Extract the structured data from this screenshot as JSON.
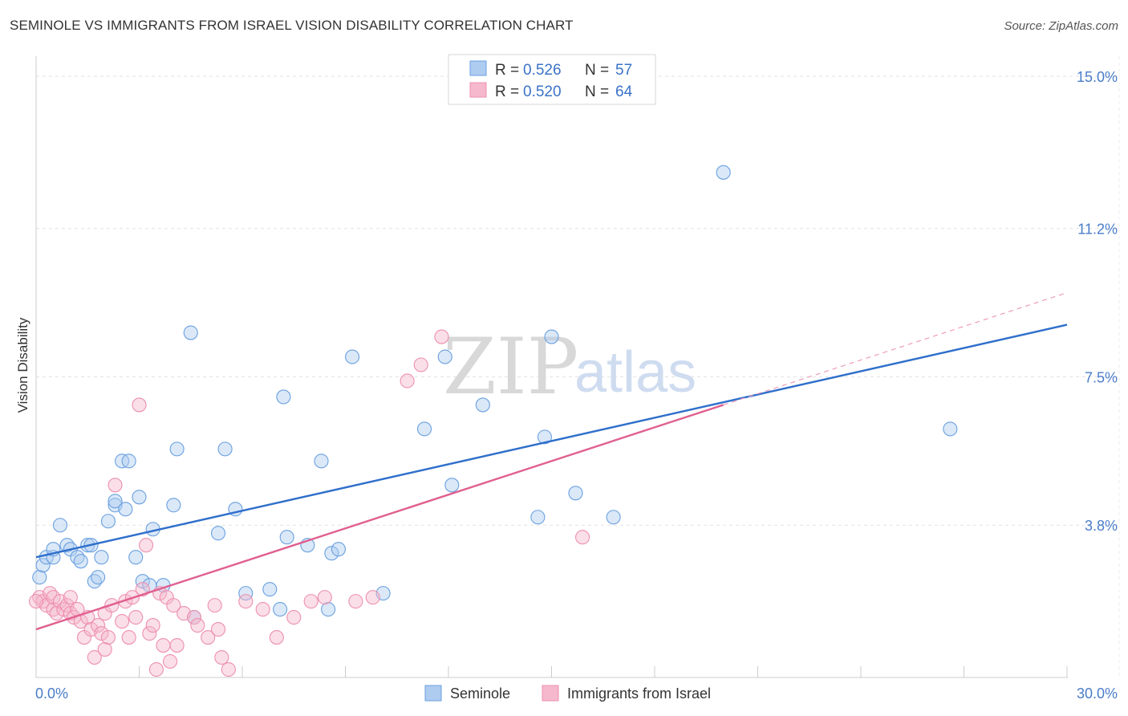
{
  "header": {
    "title": "SEMINOLE VS IMMIGRANTS FROM ISRAEL VISION DISABILITY CORRELATION CHART",
    "source": "Source: ZipAtlas.com"
  },
  "watermark": {
    "zip": "ZIP",
    "atlas": "atlas"
  },
  "legend": {
    "r_label": "R =",
    "n_label": "N =",
    "rows": [
      {
        "r": "0.526",
        "n": "57",
        "color": "#aecbf0"
      },
      {
        "r": "0.520",
        "n": "64",
        "color": "#f5b8cc"
      }
    ]
  },
  "bottom_legend": {
    "items": [
      {
        "label": "Seminole",
        "color": "#aecbf0"
      },
      {
        "label": "Immigrants from Israel",
        "color": "#f5b8cc"
      }
    ]
  },
  "chart_data": {
    "type": "scatter",
    "title": "SEMINOLE VS IMMIGRANTS FROM ISRAEL VISION DISABILITY CORRELATION CHART",
    "xlabel": "",
    "ylabel": "Vision Disability",
    "xlim": [
      0,
      30
    ],
    "ylim": [
      0,
      15.5
    ],
    "x_tick_labels": [
      "0.0%",
      "30.0%"
    ],
    "y_ticks": [
      3.8,
      7.5,
      11.2,
      15.0
    ],
    "y_tick_labels": [
      "3.8%",
      "7.5%",
      "11.2%",
      "15.0%"
    ],
    "grid": true,
    "legend_position": "top-center",
    "series": [
      {
        "name": "Seminole",
        "color": "#6aa0e0",
        "fill": "#aecbf0",
        "trend": {
          "x": [
            0,
            30
          ],
          "y": [
            3.0,
            8.8
          ],
          "color": "#2f6fcb"
        },
        "points": [
          [
            0.1,
            2.5
          ],
          [
            0.2,
            2.8
          ],
          [
            0.3,
            3.0
          ],
          [
            0.5,
            3.0
          ],
          [
            0.5,
            3.2
          ],
          [
            0.7,
            3.8
          ],
          [
            0.9,
            3.3
          ],
          [
            1.0,
            3.2
          ],
          [
            1.2,
            3.0
          ],
          [
            1.3,
            2.9
          ],
          [
            1.5,
            3.3
          ],
          [
            1.6,
            3.3
          ],
          [
            1.7,
            2.4
          ],
          [
            1.8,
            2.5
          ],
          [
            1.9,
            3.0
          ],
          [
            2.1,
            3.9
          ],
          [
            2.3,
            4.3
          ],
          [
            2.3,
            4.4
          ],
          [
            2.5,
            5.4
          ],
          [
            2.6,
            4.2
          ],
          [
            2.7,
            5.4
          ],
          [
            2.9,
            3.0
          ],
          [
            3.0,
            4.5
          ],
          [
            3.1,
            2.4
          ],
          [
            3.3,
            2.3
          ],
          [
            3.4,
            3.7
          ],
          [
            3.7,
            2.3
          ],
          [
            4.0,
            4.3
          ],
          [
            4.1,
            5.7
          ],
          [
            4.5,
            8.6
          ],
          [
            4.6,
            1.5
          ],
          [
            5.3,
            3.6
          ],
          [
            5.5,
            5.7
          ],
          [
            5.8,
            4.2
          ],
          [
            6.1,
            2.1
          ],
          [
            6.8,
            2.2
          ],
          [
            7.1,
            1.7
          ],
          [
            7.2,
            7.0
          ],
          [
            7.3,
            3.5
          ],
          [
            7.9,
            3.3
          ],
          [
            8.3,
            5.4
          ],
          [
            8.5,
            1.7
          ],
          [
            8.6,
            3.1
          ],
          [
            8.8,
            3.2
          ],
          [
            9.2,
            8.0
          ],
          [
            10.1,
            2.1
          ],
          [
            11.3,
            6.2
          ],
          [
            11.9,
            8.0
          ],
          [
            12.1,
            4.8
          ],
          [
            13.0,
            6.8
          ],
          [
            14.6,
            4.0
          ],
          [
            14.8,
            6.0
          ],
          [
            15.0,
            8.5
          ],
          [
            15.7,
            4.6
          ],
          [
            16.8,
            4.0
          ],
          [
            20.0,
            12.6
          ],
          [
            26.6,
            6.2
          ]
        ]
      },
      {
        "name": "Immigrants from Israel",
        "color": "#ee8fae",
        "fill": "#f5b8cc",
        "trend": {
          "x": [
            0,
            20
          ],
          "y": [
            1.2,
            6.8
          ],
          "color": "#e0608f"
        },
        "trend_extension": {
          "x": [
            20,
            30
          ],
          "y": [
            6.8,
            9.6
          ]
        },
        "points": [
          [
            0.1,
            2.0
          ],
          [
            0.2,
            1.9
          ],
          [
            0.3,
            1.8
          ],
          [
            0.4,
            2.1
          ],
          [
            0.5,
            1.7
          ],
          [
            0.5,
            2.0
          ],
          [
            0.6,
            1.6
          ],
          [
            0.7,
            1.9
          ],
          [
            0.8,
            1.7
          ],
          [
            0.9,
            1.8
          ],
          [
            1.0,
            1.6
          ],
          [
            1.0,
            2.0
          ],
          [
            1.1,
            1.5
          ],
          [
            1.2,
            1.7
          ],
          [
            1.3,
            1.4
          ],
          [
            1.4,
            1.0
          ],
          [
            1.5,
            1.5
          ],
          [
            1.6,
            1.2
          ],
          [
            1.7,
            0.5
          ],
          [
            1.8,
            1.3
          ],
          [
            1.9,
            1.1
          ],
          [
            2.0,
            0.7
          ],
          [
            2.0,
            1.6
          ],
          [
            2.1,
            1.0
          ],
          [
            2.2,
            1.8
          ],
          [
            2.3,
            4.8
          ],
          [
            2.5,
            1.4
          ],
          [
            2.6,
            1.9
          ],
          [
            2.7,
            1.0
          ],
          [
            2.8,
            2.0
          ],
          [
            2.9,
            1.5
          ],
          [
            3.0,
            6.8
          ],
          [
            3.1,
            2.2
          ],
          [
            3.2,
            3.3
          ],
          [
            3.3,
            1.1
          ],
          [
            3.4,
            1.3
          ],
          [
            3.5,
            0.2
          ],
          [
            3.6,
            2.1
          ],
          [
            3.7,
            0.8
          ],
          [
            3.8,
            2.0
          ],
          [
            3.9,
            0.4
          ],
          [
            4.0,
            1.8
          ],
          [
            4.1,
            0.8
          ],
          [
            4.3,
            1.6
          ],
          [
            4.6,
            1.5
          ],
          [
            4.7,
            1.3
          ],
          [
            5.0,
            1.0
          ],
          [
            5.2,
            1.8
          ],
          [
            5.3,
            1.2
          ],
          [
            5.4,
            0.5
          ],
          [
            5.6,
            0.2
          ],
          [
            6.1,
            1.9
          ],
          [
            6.6,
            1.7
          ],
          [
            7.0,
            1.0
          ],
          [
            7.5,
            1.5
          ],
          [
            8.0,
            1.9
          ],
          [
            8.4,
            2.0
          ],
          [
            9.3,
            1.9
          ],
          [
            9.8,
            2.0
          ],
          [
            10.8,
            7.4
          ],
          [
            11.2,
            7.8
          ],
          [
            11.8,
            8.5
          ],
          [
            15.9,
            3.5
          ],
          [
            0.0,
            1.9
          ]
        ]
      }
    ]
  }
}
